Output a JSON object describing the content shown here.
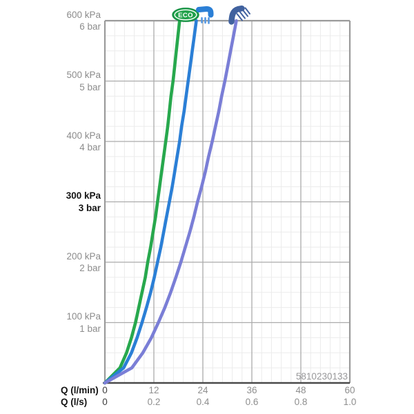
{
  "icons": {
    "eco_badge": {
      "label": "ECO",
      "fill": "#23a24c",
      "border": "#128c41",
      "ring": "#ffffff",
      "text_color": "#ffffff"
    },
    "faucet_icon": {
      "color": "#2b7fd6",
      "stream_color": "#5598e2"
    },
    "shower_icon": {
      "color": "#41629f"
    }
  },
  "chart_data": {
    "type": "line",
    "title": "",
    "watermark": "5810230133",
    "x_axis": {
      "xlim": [
        0,
        60
      ],
      "major_step": 12,
      "minor_step": 2.4,
      "rows": [
        {
          "label": "Q (l/min)",
          "ticks": [
            "0",
            "12",
            "24",
            "36",
            "48",
            "60"
          ]
        },
        {
          "label": "Q (l/s)",
          "ticks": [
            "0",
            "0.2",
            "0.4",
            "0.6",
            "0.8",
            "1.0"
          ]
        }
      ]
    },
    "y_axis": {
      "ylim": [
        0,
        600
      ],
      "major_step": 100,
      "minor_step": 25,
      "labels": [
        {
          "p": 600,
          "kpa": "600 kPa",
          "bar": "6 bar",
          "bold": false
        },
        {
          "p": 500,
          "kpa": "500 kPa",
          "bar": "5 bar",
          "bold": false
        },
        {
          "p": 400,
          "kpa": "400 kPa",
          "bar": "4 bar",
          "bold": false
        },
        {
          "p": 300,
          "kpa": "300 kPa",
          "bar": "3 bar",
          "bold": true
        },
        {
          "p": 200,
          "kpa": "200 kPa",
          "bar": "2 bar",
          "bold": false
        },
        {
          "p": 100,
          "kpa": "100 kPa",
          "bar": "1 bar",
          "bold": false
        }
      ]
    },
    "grid": {
      "minor_color": "#ebebeb",
      "major_color": "#ababab",
      "frame_color": "#9a9a9a",
      "axis_color": "#4a4a4a"
    },
    "series": [
      {
        "name": "eco-curve",
        "icon": "eco-badge",
        "color": "#27a84d",
        "points": [
          [
            0,
            0
          ],
          [
            3.7,
            25
          ],
          [
            5.3,
            50
          ],
          [
            6.5,
            75
          ],
          [
            7.5,
            100
          ],
          [
            8.3,
            125
          ],
          [
            9.1,
            150
          ],
          [
            9.9,
            175
          ],
          [
            10.5,
            200
          ],
          [
            11.2,
            225
          ],
          [
            11.8,
            250
          ],
          [
            12.4,
            275
          ],
          [
            12.9,
            300
          ],
          [
            13.4,
            325
          ],
          [
            13.9,
            350
          ],
          [
            14.4,
            375
          ],
          [
            14.9,
            400
          ],
          [
            15.4,
            425
          ],
          [
            15.8,
            450
          ],
          [
            16.2,
            475
          ],
          [
            16.7,
            500
          ],
          [
            17.1,
            525
          ],
          [
            17.5,
            550
          ],
          [
            17.9,
            575
          ],
          [
            18.3,
            600
          ]
        ]
      },
      {
        "name": "faucet-curve",
        "icon": "faucet-icon",
        "color": "#2b7fd6",
        "points": [
          [
            0,
            0
          ],
          [
            4.6,
            25
          ],
          [
            6.5,
            50
          ],
          [
            7.9,
            75
          ],
          [
            9.1,
            100
          ],
          [
            10.2,
            125
          ],
          [
            11.2,
            150
          ],
          [
            12.1,
            175
          ],
          [
            12.9,
            200
          ],
          [
            13.7,
            225
          ],
          [
            14.4,
            250
          ],
          [
            15.1,
            275
          ],
          [
            15.8,
            300
          ],
          [
            16.5,
            325
          ],
          [
            17.1,
            350
          ],
          [
            17.7,
            375
          ],
          [
            18.3,
            400
          ],
          [
            18.8,
            425
          ],
          [
            19.4,
            450
          ],
          [
            19.9,
            475
          ],
          [
            20.4,
            500
          ],
          [
            20.9,
            525
          ],
          [
            21.4,
            550
          ],
          [
            21.9,
            575
          ],
          [
            22.4,
            600
          ]
        ]
      },
      {
        "name": "shower-curve",
        "icon": "shower-icon",
        "color": "#7a7ed6",
        "points": [
          [
            0,
            0
          ],
          [
            6.6,
            25
          ],
          [
            9.3,
            50
          ],
          [
            11.4,
            75
          ],
          [
            13.1,
            100
          ],
          [
            14.7,
            125
          ],
          [
            16.1,
            150
          ],
          [
            17.4,
            175
          ],
          [
            18.6,
            200
          ],
          [
            19.7,
            225
          ],
          [
            20.8,
            250
          ],
          [
            21.8,
            275
          ],
          [
            22.7,
            300
          ],
          [
            23.7,
            325
          ],
          [
            24.6,
            350
          ],
          [
            25.4,
            375
          ],
          [
            26.3,
            400
          ],
          [
            27.1,
            425
          ],
          [
            27.9,
            450
          ],
          [
            28.6,
            475
          ],
          [
            29.4,
            500
          ],
          [
            30.1,
            525
          ],
          [
            30.8,
            550
          ],
          [
            31.5,
            575
          ],
          [
            32.2,
            600
          ]
        ]
      }
    ]
  }
}
